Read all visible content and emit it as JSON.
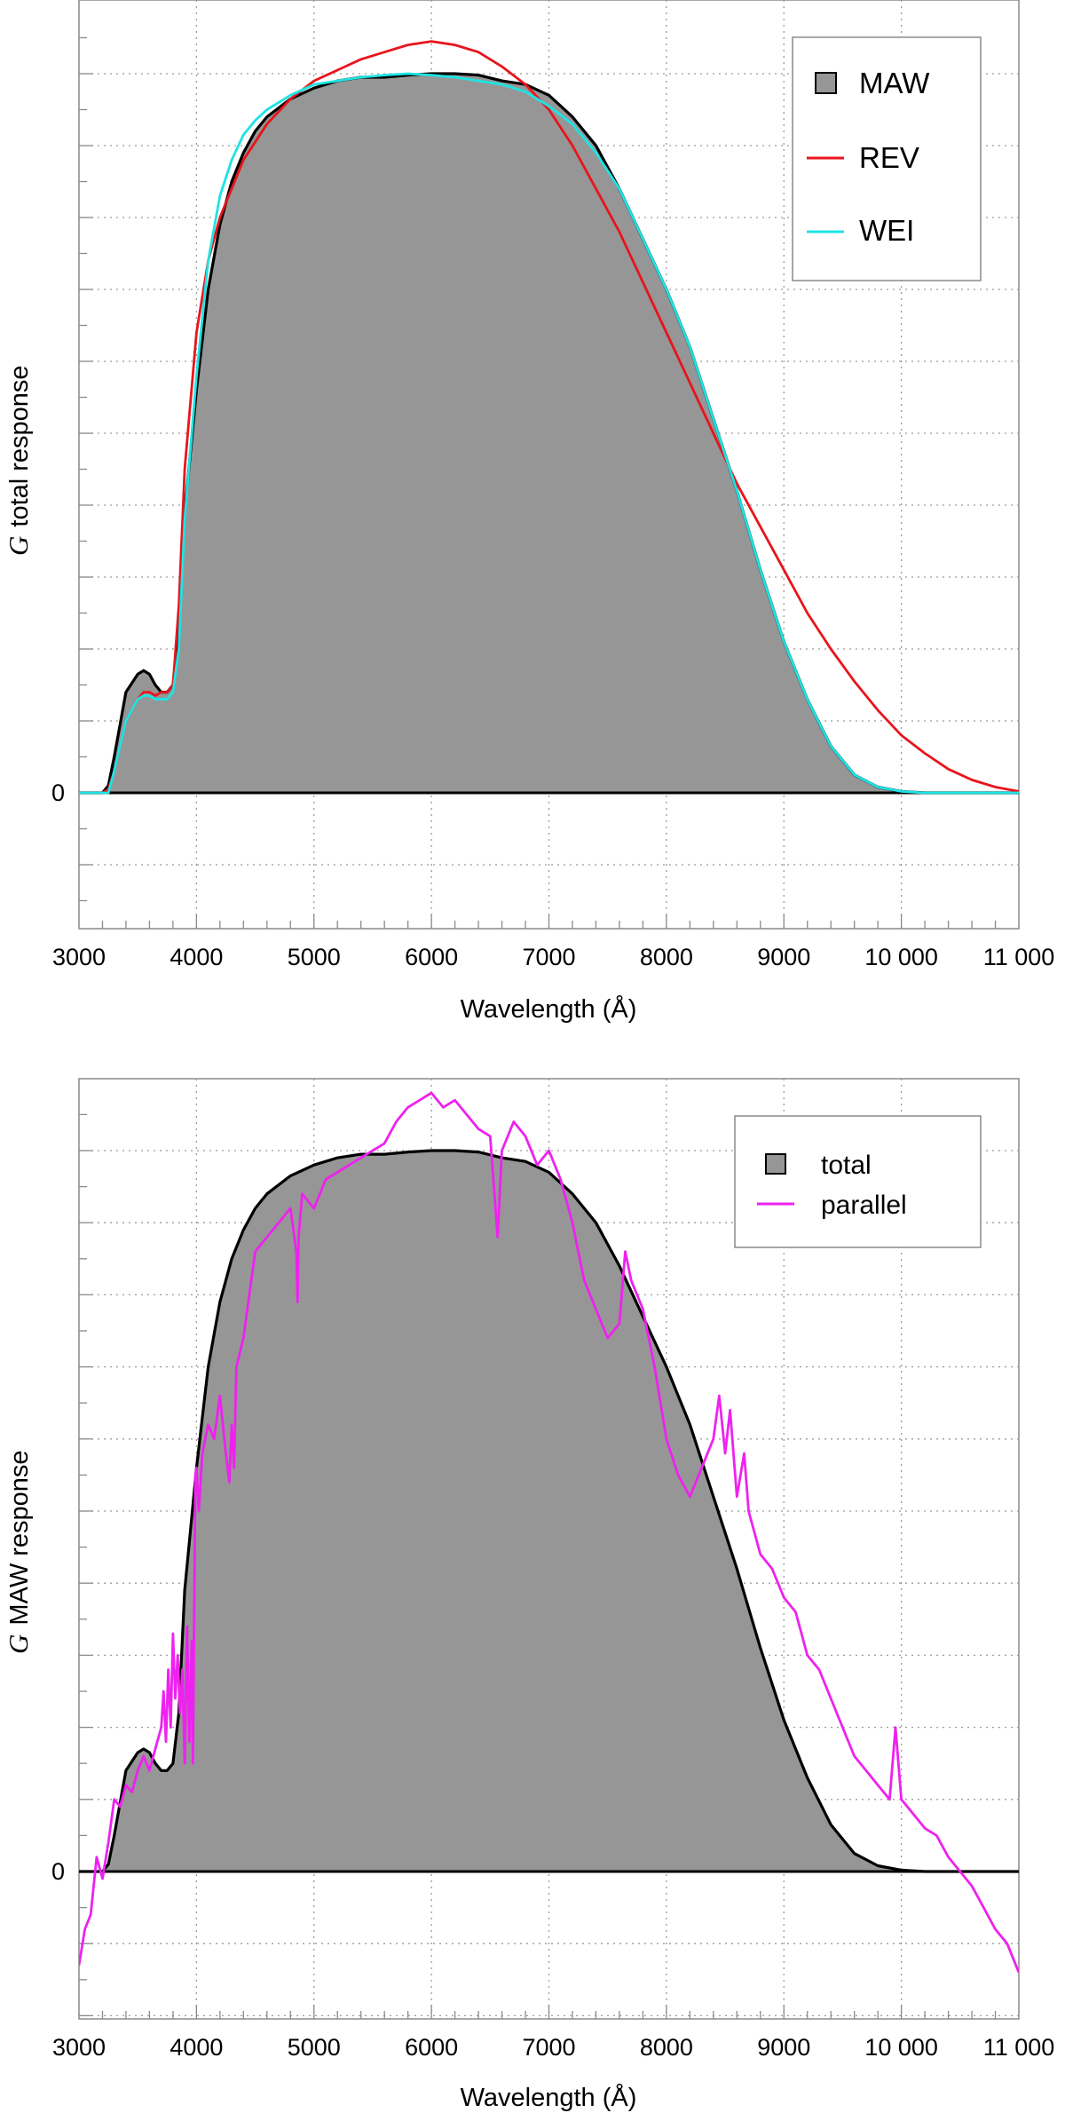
{
  "chart_data": [
    {
      "type": "area",
      "xlabel": "Wavelength (Å)",
      "ylabel_symbol": "G",
      "ylabel": "total response",
      "xlim": [
        3000,
        11000
      ],
      "xticks": [
        3000,
        4000,
        5000,
        6000,
        7000,
        8000,
        9000,
        10000,
        11000
      ],
      "xtick_labels": [
        "3000",
        "4000",
        "5000",
        "6000",
        "7000",
        "8000",
        "9000",
        "10 000",
        "11 000"
      ],
      "ylim": [
        -0.2,
        1.1
      ],
      "ytick_labels": [
        {
          "y": 0,
          "label": "0"
        }
      ],
      "grid": true,
      "legend_position": "top-right",
      "series": [
        {
          "name": "MAW",
          "style": "filled",
          "color": "#969696",
          "line_color": "#000000",
          "x": [
            3000,
            3200,
            3250,
            3300,
            3400,
            3500,
            3550,
            3600,
            3650,
            3700,
            3750,
            3800,
            3850,
            3900,
            4000,
            4100,
            4200,
            4300,
            4400,
            4500,
            4600,
            4800,
            5000,
            5200,
            5400,
            5600,
            5800,
            6000,
            6200,
            6400,
            6600,
            6800,
            7000,
            7200,
            7400,
            7600,
            7800,
            8000,
            8200,
            8400,
            8600,
            8800,
            9000,
            9200,
            9400,
            9600,
            9800,
            10000,
            10200,
            10400,
            10600,
            10800,
            11000
          ],
          "y": [
            0,
            0,
            0.01,
            0.05,
            0.14,
            0.165,
            0.17,
            0.165,
            0.15,
            0.14,
            0.14,
            0.15,
            0.22,
            0.39,
            0.56,
            0.7,
            0.79,
            0.85,
            0.89,
            0.92,
            0.94,
            0.965,
            0.98,
            0.99,
            0.995,
            0.995,
            0.998,
            1.0,
            1.0,
            0.998,
            0.99,
            0.985,
            0.97,
            0.94,
            0.9,
            0.84,
            0.77,
            0.7,
            0.62,
            0.52,
            0.42,
            0.31,
            0.21,
            0.13,
            0.065,
            0.025,
            0.008,
            0.002,
            0,
            0,
            0,
            0,
            0
          ]
        },
        {
          "name": "REV",
          "style": "line",
          "color": "#e8141c",
          "x": [
            3000,
            3200,
            3250,
            3300,
            3400,
            3500,
            3550,
            3600,
            3650,
            3700,
            3750,
            3800,
            3850,
            3900,
            4000,
            4100,
            4200,
            4400,
            4600,
            4800,
            5000,
            5200,
            5400,
            5600,
            5800,
            6000,
            6200,
            6400,
            6600,
            6800,
            7000,
            7200,
            7400,
            7600,
            7800,
            8000,
            8200,
            8400,
            8600,
            8800,
            9000,
            9200,
            9400,
            9600,
            9800,
            10000,
            10200,
            10400,
            10600,
            10800,
            11000
          ],
          "y": [
            0,
            0,
            0.005,
            0.03,
            0.1,
            0.13,
            0.14,
            0.14,
            0.135,
            0.14,
            0.14,
            0.15,
            0.26,
            0.45,
            0.64,
            0.74,
            0.8,
            0.88,
            0.93,
            0.965,
            0.99,
            1.005,
            1.02,
            1.03,
            1.04,
            1.045,
            1.04,
            1.03,
            1.01,
            0.985,
            0.95,
            0.9,
            0.84,
            0.78,
            0.71,
            0.64,
            0.57,
            0.5,
            0.43,
            0.37,
            0.31,
            0.25,
            0.2,
            0.155,
            0.115,
            0.08,
            0.055,
            0.033,
            0.018,
            0.008,
            0.002
          ]
        },
        {
          "name": "WEI",
          "style": "line",
          "color": "#1ee3e3",
          "x": [
            3000,
            3200,
            3250,
            3300,
            3400,
            3500,
            3550,
            3600,
            3650,
            3700,
            3750,
            3800,
            3850,
            3900,
            4000,
            4100,
            4200,
            4300,
            4400,
            4500,
            4600,
            4800,
            5000,
            5200,
            5400,
            5600,
            5800,
            6000,
            6200,
            6400,
            6600,
            6800,
            7000,
            7200,
            7400,
            7600,
            7800,
            8000,
            8200,
            8400,
            8600,
            8800,
            9000,
            9200,
            9400,
            9600,
            9800,
            10000,
            10200,
            10400,
            10600,
            10800,
            11000
          ],
          "y": [
            0,
            0,
            0.0,
            0.03,
            0.1,
            0.13,
            0.135,
            0.135,
            0.13,
            0.13,
            0.13,
            0.14,
            0.2,
            0.38,
            0.58,
            0.74,
            0.83,
            0.88,
            0.915,
            0.935,
            0.95,
            0.97,
            0.985,
            0.99,
            0.995,
            0.998,
            1.0,
            0.998,
            0.995,
            0.99,
            0.985,
            0.975,
            0.955,
            0.93,
            0.89,
            0.84,
            0.77,
            0.7,
            0.62,
            0.52,
            0.42,
            0.31,
            0.21,
            0.13,
            0.065,
            0.025,
            0.008,
            0.002,
            0,
            0,
            0,
            0,
            0
          ]
        }
      ]
    },
    {
      "type": "area",
      "xlabel": "Wavelength (Å)",
      "ylabel_symbol": "G",
      "ylabel": "MAW response",
      "xlim": [
        3000,
        11000
      ],
      "xticks": [
        3000,
        4000,
        5000,
        6000,
        7000,
        8000,
        9000,
        10000,
        11000
      ],
      "xtick_labels": [
        "3000",
        "4000",
        "5000",
        "6000",
        "7000",
        "8000",
        "9000",
        "10 000",
        "11 000"
      ],
      "ylim": [
        -0.2,
        1.1
      ],
      "ytick_labels": [
        {
          "y": 0,
          "label": "0"
        }
      ],
      "grid": true,
      "legend_position": "top-right",
      "series": [
        {
          "name": "total",
          "style": "filled",
          "color": "#969696",
          "line_color": "#000000",
          "x": [
            3000,
            3200,
            3250,
            3300,
            3400,
            3500,
            3550,
            3600,
            3650,
            3700,
            3750,
            3800,
            3850,
            3900,
            4000,
            4100,
            4200,
            4300,
            4400,
            4500,
            4600,
            4800,
            5000,
            5200,
            5400,
            5600,
            5800,
            6000,
            6200,
            6400,
            6600,
            6800,
            7000,
            7200,
            7400,
            7600,
            7800,
            8000,
            8200,
            8400,
            8600,
            8800,
            9000,
            9200,
            9400,
            9600,
            9800,
            10000,
            10200,
            10400,
            10600,
            10800,
            11000
          ],
          "y": [
            0,
            0,
            0.01,
            0.05,
            0.14,
            0.165,
            0.17,
            0.165,
            0.15,
            0.14,
            0.14,
            0.15,
            0.22,
            0.39,
            0.56,
            0.7,
            0.79,
            0.85,
            0.89,
            0.92,
            0.94,
            0.965,
            0.98,
            0.99,
            0.995,
            0.995,
            0.998,
            1.0,
            1.0,
            0.998,
            0.99,
            0.985,
            0.97,
            0.94,
            0.9,
            0.84,
            0.77,
            0.7,
            0.62,
            0.52,
            0.42,
            0.31,
            0.21,
            0.13,
            0.065,
            0.025,
            0.008,
            0.002,
            0,
            0,
            0,
            0,
            0
          ]
        },
        {
          "name": "parallel",
          "style": "line",
          "color": "#ee22ee",
          "x": [
            3000,
            3050,
            3100,
            3150,
            3200,
            3250,
            3300,
            3350,
            3400,
            3450,
            3500,
            3550,
            3600,
            3650,
            3700,
            3720,
            3740,
            3760,
            3780,
            3800,
            3820,
            3840,
            3860,
            3880,
            3900,
            3920,
            3940,
            3960,
            3970,
            3990,
            4000,
            4020,
            4050,
            4100,
            4150,
            4200,
            4250,
            4280,
            4300,
            4320,
            4340,
            4400,
            4500,
            4600,
            4700,
            4800,
            4850,
            4861,
            4870,
            4900,
            5000,
            5100,
            5200,
            5300,
            5400,
            5500,
            5600,
            5700,
            5800,
            5900,
            6000,
            6100,
            6200,
            6300,
            6400,
            6500,
            6563,
            6600,
            6700,
            6800,
            6900,
            7000,
            7100,
            7200,
            7300,
            7400,
            7500,
            7600,
            7650,
            7700,
            7800,
            7900,
            8000,
            8100,
            8200,
            8300,
            8400,
            8450,
            8500,
            8542,
            8600,
            8662,
            8700,
            8800,
            8900,
            9000,
            9100,
            9200,
            9300,
            9400,
            9500,
            9600,
            9700,
            9800,
            9900,
            9950,
            10000,
            10100,
            10200,
            10300,
            10400,
            10500,
            10600,
            10700,
            10800,
            10900,
            11000
          ],
          "y": [
            -0.13,
            -0.08,
            -0.06,
            0.02,
            -0.01,
            0.04,
            0.1,
            0.09,
            0.12,
            0.11,
            0.14,
            0.16,
            0.14,
            0.17,
            0.2,
            0.25,
            0.18,
            0.28,
            0.2,
            0.33,
            0.24,
            0.3,
            0.22,
            0.28,
            0.15,
            0.34,
            0.18,
            0.32,
            0.15,
            0.55,
            0.56,
            0.5,
            0.58,
            0.62,
            0.6,
            0.66,
            0.58,
            0.54,
            0.62,
            0.56,
            0.7,
            0.74,
            0.86,
            0.88,
            0.9,
            0.92,
            0.86,
            0.79,
            0.88,
            0.94,
            0.92,
            0.96,
            0.97,
            0.98,
            0.99,
            1.0,
            1.01,
            1.04,
            1.06,
            1.07,
            1.08,
            1.06,
            1.07,
            1.05,
            1.03,
            1.02,
            0.88,
            1.0,
            1.04,
            1.02,
            0.98,
            1.0,
            0.96,
            0.9,
            0.82,
            0.78,
            0.74,
            0.76,
            0.86,
            0.82,
            0.78,
            0.7,
            0.6,
            0.55,
            0.52,
            0.56,
            0.6,
            0.66,
            0.58,
            0.64,
            0.52,
            0.58,
            0.5,
            0.44,
            0.42,
            0.38,
            0.36,
            0.3,
            0.28,
            0.24,
            0.2,
            0.16,
            0.14,
            0.12,
            0.1,
            0.2,
            0.1,
            0.08,
            0.06,
            0.05,
            0.02,
            0.0,
            -0.02,
            -0.05,
            -0.08,
            -0.1,
            -0.14
          ]
        }
      ]
    }
  ]
}
